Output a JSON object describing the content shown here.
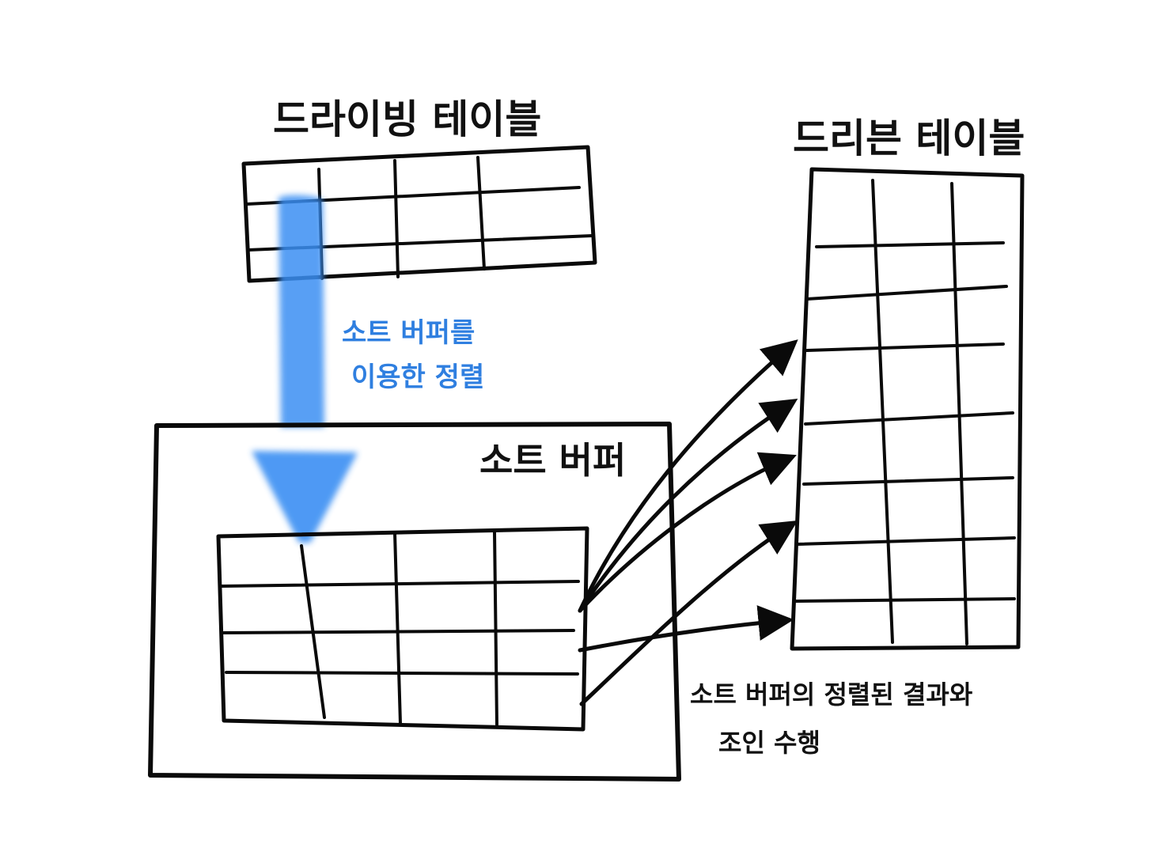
{
  "driving_table": {
    "title": "드라이빙 테이블"
  },
  "driven_table": {
    "title": "드리븐 테이블"
  },
  "sort_buffer": {
    "title": "소트 버퍼"
  },
  "sort_note": {
    "line1": "소트 버퍼를",
    "line2": "이용한 정렬"
  },
  "join_note": {
    "line1": "소트 버퍼의 정렬된 결과와",
    "line2": "조인 수행"
  },
  "colors": {
    "ink": "#0a0a0a",
    "accent": "#3b8ff3",
    "accent_text": "#2f7fe0"
  },
  "icons": {
    "sort_arrow": "down-arrow-icon",
    "join_arrows": "right-arrow-icon"
  }
}
